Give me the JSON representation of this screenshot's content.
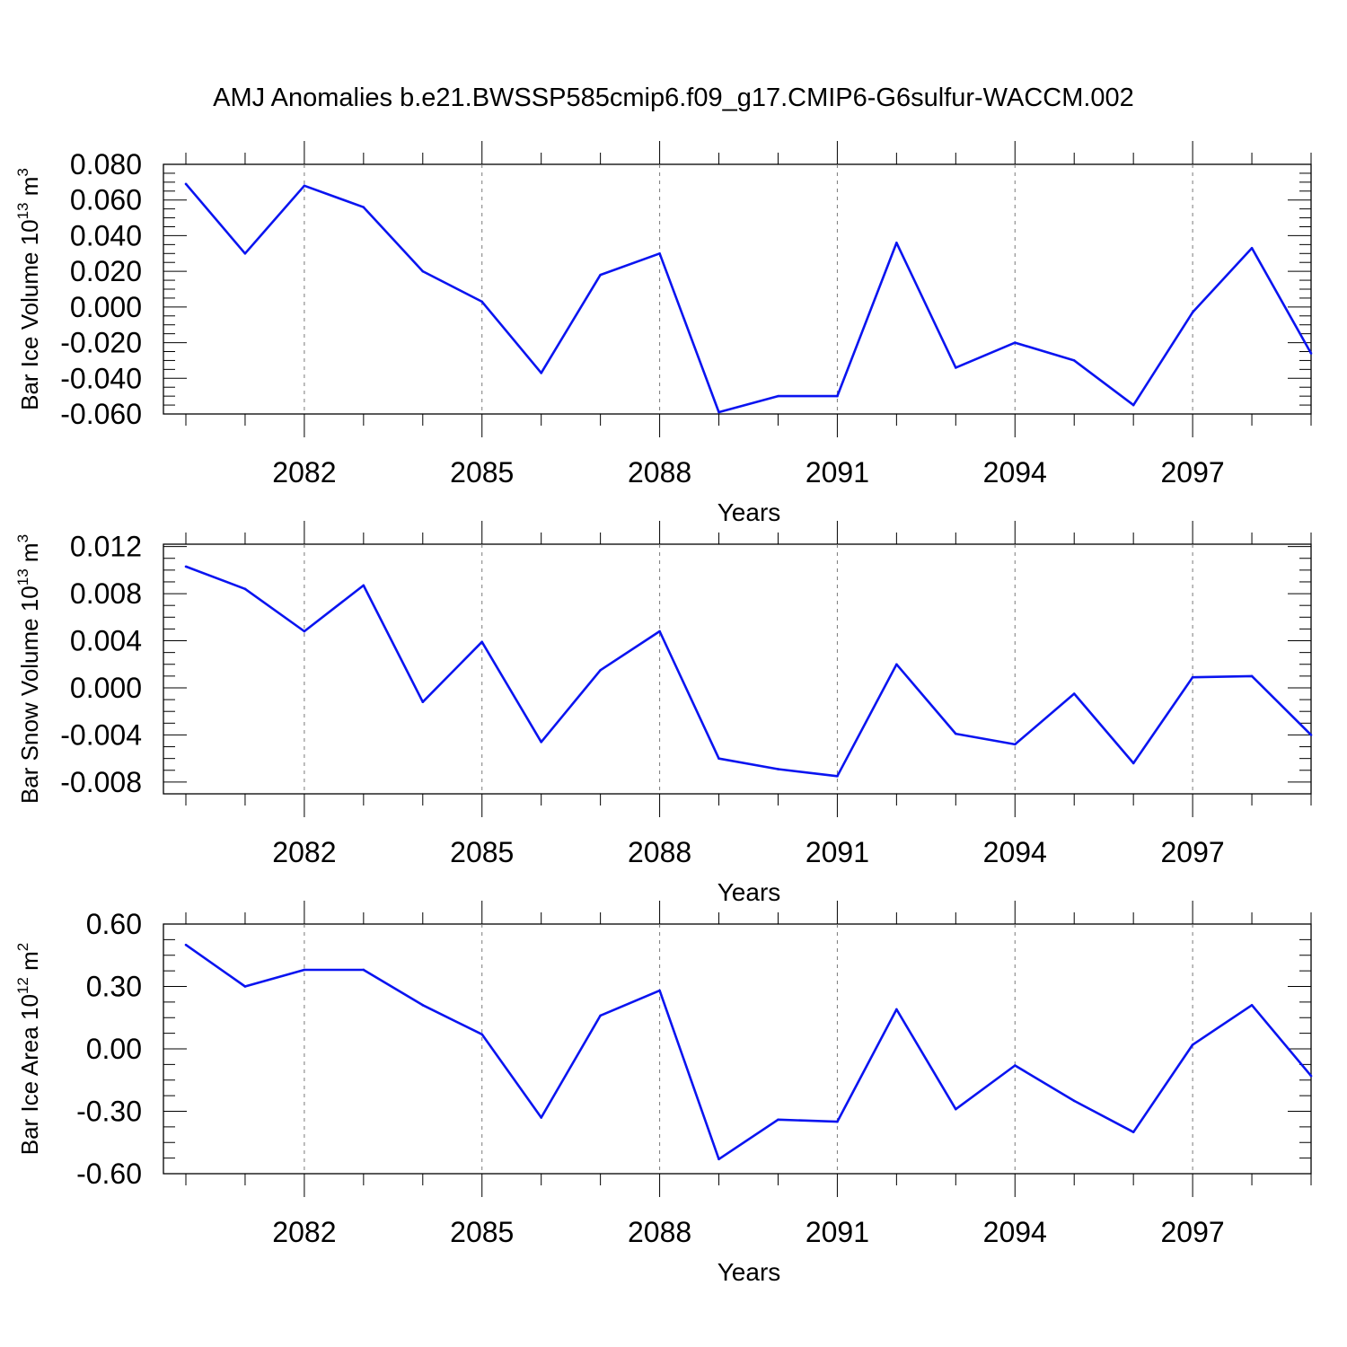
{
  "title": "AMJ Anomalies b.e21.BWSSP585cmip6.f09_g17.CMIP6-G6sulfur-WACCM.002",
  "colors": {
    "line": "#0a14f0",
    "axis": "#000000",
    "grid": "#7a7a7a"
  },
  "chart_data": [
    {
      "type": "line",
      "ylabel": {
        "text": "Bar Ice Volume 10",
        "sup": "13",
        "unit": " m",
        "unit_sup": "3"
      },
      "xlabel": "Years",
      "x": [
        2080,
        2081,
        2082,
        2083,
        2084,
        2085,
        2086,
        2087,
        2088,
        2089,
        2090,
        2091,
        2092,
        2093,
        2094,
        2095,
        2096,
        2097,
        2098,
        2099
      ],
      "values": [
        0.069,
        0.03,
        0.068,
        0.056,
        0.02,
        0.003,
        -0.037,
        0.018,
        0.03,
        -0.059,
        -0.05,
        -0.05,
        0.036,
        -0.034,
        -0.02,
        -0.03,
        -0.055,
        -0.003,
        0.033,
        -0.026
      ],
      "xlim": [
        2080,
        2099
      ],
      "ylim": [
        -0.06,
        0.08
      ],
      "xticks": [
        2082,
        2085,
        2088,
        2091,
        2094,
        2097
      ],
      "xticklabels": [
        "2082",
        "2085",
        "2088",
        "2091",
        "2094",
        "2097"
      ],
      "yticks": [
        -0.06,
        -0.04,
        -0.02,
        0.0,
        0.02,
        0.04,
        0.06,
        0.08
      ],
      "yticklabels": [
        "-0.060",
        "-0.040",
        "-0.020",
        "0.000",
        "0.020",
        "0.040",
        "0.060",
        "0.080"
      ],
      "grid": "vertical dashed at major x ticks"
    },
    {
      "type": "line",
      "ylabel": {
        "text": "Bar Snow Volume 10",
        "sup": "13",
        "unit": " m",
        "unit_sup": "3"
      },
      "xlabel": "Years",
      "x": [
        2080,
        2081,
        2082,
        2083,
        2084,
        2085,
        2086,
        2087,
        2088,
        2089,
        2090,
        2091,
        2092,
        2093,
        2094,
        2095,
        2096,
        2097,
        2098,
        2099
      ],
      "values": [
        0.0103,
        0.0084,
        0.0048,
        0.0087,
        -0.0012,
        0.0039,
        -0.0046,
        0.0015,
        0.0048,
        -0.006,
        -0.0069,
        -0.0075,
        0.002,
        -0.0039,
        -0.0048,
        -0.0005,
        -0.0064,
        0.0009,
        0.001,
        -0.004
      ],
      "xlim": [
        2080,
        2099
      ],
      "ylim": [
        -0.009,
        0.0122
      ],
      "xticks": [
        2082,
        2085,
        2088,
        2091,
        2094,
        2097
      ],
      "xticklabels": [
        "2082",
        "2085",
        "2088",
        "2091",
        "2094",
        "2097"
      ],
      "yticks": [
        -0.008,
        -0.004,
        0.0,
        0.004,
        0.008,
        0.012
      ],
      "yticklabels": [
        "-0.008",
        "-0.004",
        "0.000",
        "0.004",
        "0.008",
        "0.012"
      ],
      "grid": "vertical dashed at major x ticks"
    },
    {
      "type": "line",
      "ylabel": {
        "text": "Bar Ice Area 10",
        "sup": "12",
        "unit": " m",
        "unit_sup": "2"
      },
      "xlabel": "Years",
      "x": [
        2080,
        2081,
        2082,
        2083,
        2084,
        2085,
        2086,
        2087,
        2088,
        2089,
        2090,
        2091,
        2092,
        2093,
        2094,
        2095,
        2096,
        2097,
        2098,
        2099
      ],
      "values": [
        0.5,
        0.3,
        0.38,
        0.38,
        0.21,
        0.07,
        -0.33,
        0.16,
        0.28,
        -0.53,
        -0.34,
        -0.35,
        0.19,
        -0.29,
        -0.08,
        -0.25,
        -0.4,
        0.02,
        0.21,
        -0.13
      ],
      "xlim": [
        2080,
        2099
      ],
      "ylim": [
        -0.6,
        0.6
      ],
      "xticks": [
        2082,
        2085,
        2088,
        2091,
        2094,
        2097
      ],
      "xticklabels": [
        "2082",
        "2085",
        "2088",
        "2091",
        "2094",
        "2097"
      ],
      "yticks": [
        -0.6,
        -0.3,
        0.0,
        0.3,
        0.6
      ],
      "yticklabels": [
        "-0.60",
        "-0.30",
        "0.00",
        "0.30",
        "0.60"
      ],
      "grid": "vertical dashed at major x ticks"
    }
  ]
}
